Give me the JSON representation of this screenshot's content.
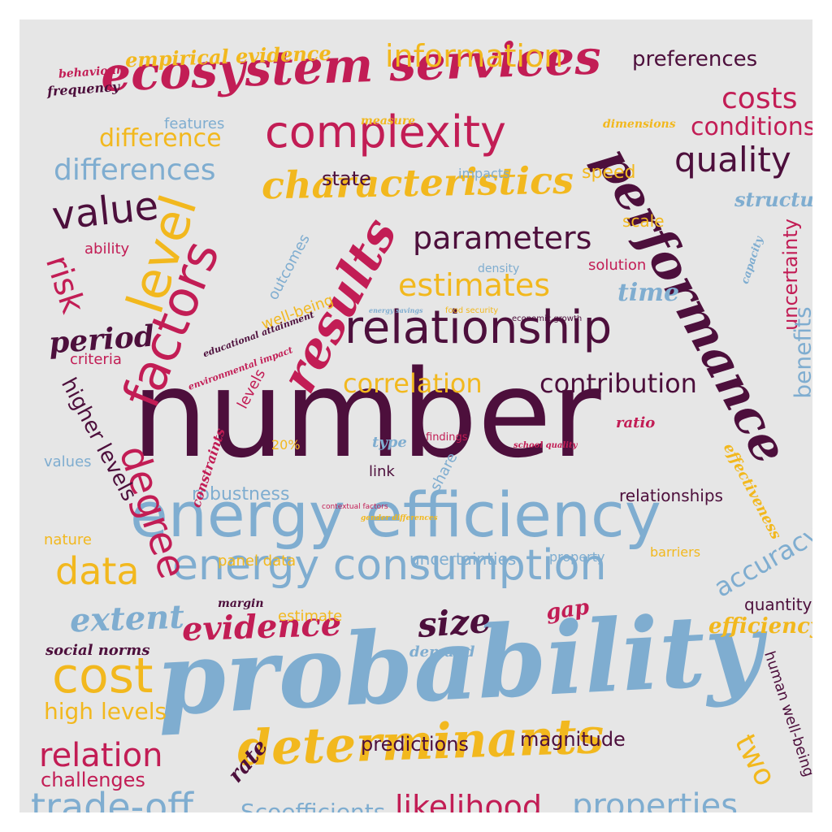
{
  "colors": {
    "background": "#e6e6e6",
    "blue": "#7fadd0",
    "gold": "#f2b81e",
    "crimson": "#c21d55",
    "plum": "#4d0f3c"
  },
  "words": {
    "number": "number",
    "probability": "probability",
    "energy_efficiency": "energy efficiency",
    "ecosystem_services": "ecosystem services",
    "determinants": "determinants",
    "performance": "performance",
    "energy_consumption": "energy consumption",
    "relationship": "relationship",
    "characteristics": "characteristics",
    "results": "results",
    "complexity": "complexity",
    "factors": "factors",
    "level": "level",
    "value": "value",
    "cost": "cost",
    "parameters": "parameters",
    "estimates": "estimates",
    "information": "information",
    "quality": "quality",
    "degree": "degree",
    "trade_off": "trade-off",
    "likelihood": "likelihood",
    "properties": "properties",
    "differences": "differences",
    "data": "data",
    "evidence": "evidence",
    "costs": "costs",
    "conditions": "conditions",
    "relation": "relation",
    "preferences": "preferences",
    "correlation": "correlation",
    "contribution": "contribution",
    "accuracy": "accuracy",
    "risk": "risk",
    "extent": "extent",
    "size": "size",
    "period": "period",
    "coefficients": "Scoefficients",
    "uncertainty": "uncertainty",
    "benefits": "benefits",
    "higher_levels": "higher levels",
    "empirical_evidence": "empirical evidence",
    "difference": "difference",
    "two": "two",
    "efficiency": "efficiency",
    "high_levels": "high levels",
    "challenges": "challenges",
    "predictions": "predictions",
    "magnitude": "magnitude",
    "uncertainties": "uncertainties",
    "time": "time",
    "structure": "structure",
    "state": "state",
    "robustness": "robustness",
    "human_well_being": "human well-being",
    "relationships": "relationships",
    "speed": "speed",
    "gap": "gap",
    "rate": "rate",
    "effectiveness": "effectiveness",
    "social_norms": "social norms",
    "outcomes": "outcomes",
    "ability": "ability",
    "well_being": "well-being",
    "features": "features",
    "quantity": "quantity",
    "solution": "solution",
    "scale": "scale",
    "estimate": "estimate",
    "demand": "demand",
    "panel_data": "panel data",
    "nature": "nature",
    "criteria": "criteria",
    "values": "values",
    "levels": "levels",
    "barriers": "barriers",
    "link": "link",
    "share": "share",
    "property": "property",
    "capacity": "capacity",
    "impacts": "impacts",
    "density": "density",
    "measure": "measure",
    "dimensions": "dimensions",
    "behaviour": "behaviour",
    "frequency": "frequency",
    "type": "type",
    "ratio": "ratio",
    "findings": "findings",
    "margin": "margin",
    "constraints": "constraints",
    "twenty_pct": "20%",
    "educational_attainment": "educational attainment",
    "environmental_impact": "environmental impact",
    "energy_savings": "energy savings",
    "food_security": "food security",
    "economic_growth": "economic growth",
    "school_quality": "school quality",
    "contextual_factors": "contextual factors",
    "gender_differences": "gender differences"
  }
}
